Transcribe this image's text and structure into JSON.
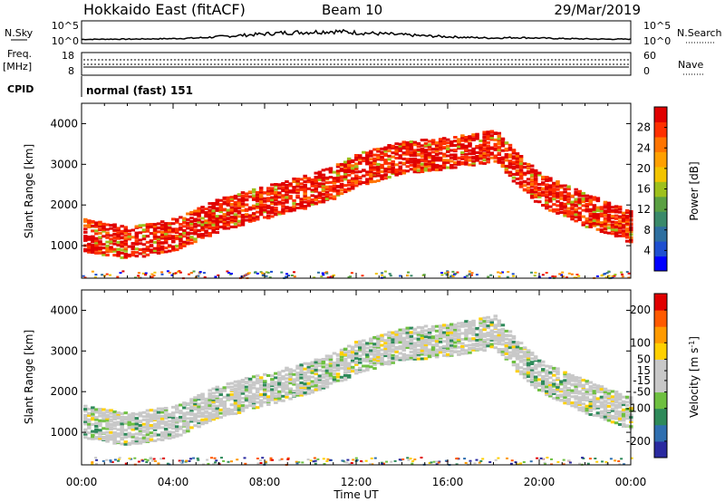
{
  "header": {
    "title": "Hokkaido East (fitACF)",
    "beam": "Beam 10",
    "date": "29/Mar/2019"
  },
  "noise_panel": {
    "left_label": "N.Sky",
    "right_label": "N.Search",
    "ticks_left": [
      "10^5",
      "10^0"
    ],
    "ticks_right": [
      "10^5",
      "10^0"
    ],
    "sky_level": [
      0.5,
      0.6,
      0.6,
      0.7,
      0.8,
      1.0,
      1.5,
      2.0,
      2.5,
      3.0,
      3.2,
      3.5,
      3.0,
      2.6,
      2.2,
      1.8,
      1.5,
      1.2,
      1.0,
      1.2,
      1.0,
      0.8,
      0.7,
      0.6,
      0.6
    ]
  },
  "freq_panel": {
    "left_label": "Freq.",
    "left_unit": "[MHz]",
    "right_label": "Nave",
    "ticks_left": [
      "18",
      "8"
    ],
    "ticks_right": [
      "60",
      "0"
    ]
  },
  "cpid": {
    "label": "CPID",
    "value": "normal (fast) 151"
  },
  "time_axis": {
    "label": "Time UT",
    "ticks": [
      "00:00",
      "04:00",
      "08:00",
      "12:00",
      "16:00",
      "20:00",
      "00:00"
    ]
  },
  "chart_data": [
    {
      "type": "heatmap",
      "title": "",
      "xlabel": "Time UT",
      "ylabel": "Slant Range [km]",
      "xlim": [
        0,
        24
      ],
      "ylim": [
        200,
        4500
      ],
      "yticks": [
        1000,
        2000,
        3000,
        4000
      ],
      "colorbar": {
        "label": "Power [dB]",
        "range": [
          0,
          32
        ],
        "ticks": [
          4,
          8,
          12,
          16,
          20,
          24,
          28
        ],
        "colors": [
          "#0000ff",
          "#1e4fd0",
          "#2e6fa0",
          "#3a8a6a",
          "#5aa042",
          "#9ec01c",
          "#f2c400",
          "#ffa000",
          "#ff7400",
          "#ff3000",
          "#e00000"
        ]
      },
      "backscatter_band": {
        "time_h": [
          0,
          2,
          4,
          6,
          8,
          10,
          11,
          12,
          14,
          16,
          17,
          18,
          19,
          20,
          22,
          24
        ],
        "range_km": [
          1300,
          1100,
          1300,
          1800,
          2100,
          2400,
          2600,
          2900,
          3200,
          3300,
          3400,
          3500,
          2900,
          2400,
          1900,
          1500
        ]
      }
    },
    {
      "type": "heatmap",
      "title": "",
      "xlabel": "Time UT",
      "ylabel": "Slant Range [km]",
      "xlim": [
        0,
        24
      ],
      "ylim": [
        200,
        4500
      ],
      "yticks": [
        1000,
        2000,
        3000,
        4000
      ],
      "colorbar": {
        "label": "Velocity",
        "unit": "[m s",
        "unit_exp": "-1",
        "unit_close": "]",
        "range": [
          -250,
          250
        ],
        "ticks": [
          200,
          100,
          50,
          15,
          -15,
          -50,
          -100,
          -200
        ],
        "colors": [
          "#2a2aa0",
          "#2f6fb0",
          "#2e8a5a",
          "#6ec040",
          "#c8c8c8",
          "#c8c8c8",
          "#ffd000",
          "#ff9a00",
          "#ff5a00",
          "#e00000"
        ]
      },
      "backscatter_band": {
        "time_h": [
          0,
          2,
          4,
          6,
          8,
          10,
          11,
          12,
          14,
          16,
          17,
          18,
          19,
          20,
          22,
          24
        ],
        "range_km": [
          1300,
          1100,
          1300,
          1800,
          2100,
          2400,
          2600,
          2900,
          3200,
          3300,
          3400,
          3500,
          2900,
          2400,
          1900,
          1500
        ]
      }
    }
  ]
}
